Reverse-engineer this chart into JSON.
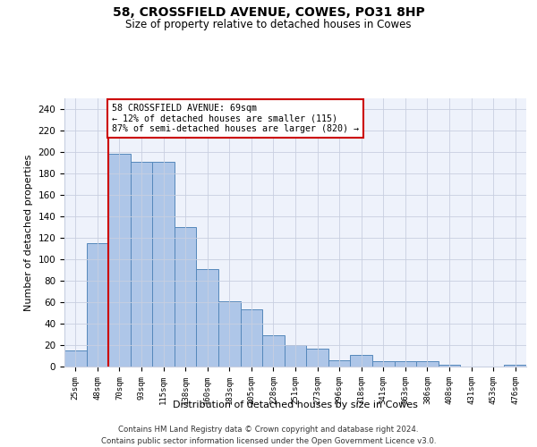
{
  "title1": "58, CROSSFIELD AVENUE, COWES, PO31 8HP",
  "title2": "Size of property relative to detached houses in Cowes",
  "xlabel": "Distribution of detached houses by size in Cowes",
  "ylabel": "Number of detached properties",
  "categories": [
    "25sqm",
    "48sqm",
    "70sqm",
    "93sqm",
    "115sqm",
    "138sqm",
    "160sqm",
    "183sqm",
    "205sqm",
    "228sqm",
    "251sqm",
    "273sqm",
    "296sqm",
    "318sqm",
    "341sqm",
    "363sqm",
    "386sqm",
    "408sqm",
    "431sqm",
    "453sqm",
    "476sqm"
  ],
  "values": [
    15,
    115,
    198,
    191,
    191,
    130,
    91,
    61,
    53,
    29,
    20,
    17,
    6,
    11,
    5,
    5,
    5,
    2,
    0,
    0,
    2
  ],
  "bar_color": "#aec6e8",
  "bar_edge_color": "#5588bb",
  "highlight_index": 2,
  "highlight_line_color": "#cc0000",
  "annotation_line1": "58 CROSSFIELD AVENUE: 69sqm",
  "annotation_line2": "← 12% of detached houses are smaller (115)",
  "annotation_line3": "87% of semi-detached houses are larger (820) →",
  "annotation_box_color": "#ffffff",
  "annotation_border_color": "#cc0000",
  "ylim": [
    0,
    250
  ],
  "yticks": [
    0,
    20,
    40,
    60,
    80,
    100,
    120,
    140,
    160,
    180,
    200,
    220,
    240
  ],
  "footer1": "Contains HM Land Registry data © Crown copyright and database right 2024.",
  "footer2": "Contains public sector information licensed under the Open Government Licence v3.0.",
  "bg_color": "#eef2fb",
  "grid_color": "#c8cfe0"
}
